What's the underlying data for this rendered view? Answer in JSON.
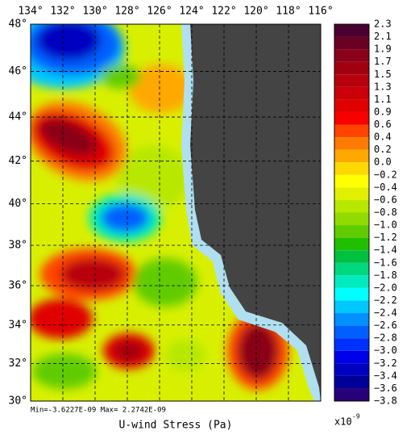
{
  "chart_data": {
    "type": "contour-map",
    "title": "U-wind Stress (Pa)",
    "stats": "Min=-3.6227E-09  Max= 2.2742E-09",
    "scale_base": "x10",
    "scale_exponent": "-9",
    "xlim": [
      134,
      116
    ],
    "xticks": [
      {
        "value": 134,
        "label": "134°"
      },
      {
        "value": 132,
        "label": "132°"
      },
      {
        "value": 130,
        "label": "130°"
      },
      {
        "value": 128,
        "label": "128°"
      },
      {
        "value": 126,
        "label": "126°"
      },
      {
        "value": 124,
        "label": "124°"
      },
      {
        "value": 122,
        "label": "122°"
      },
      {
        "value": 120,
        "label": "120°"
      },
      {
        "value": 118,
        "label": "118°"
      },
      {
        "value": 116,
        "label": "116°"
      }
    ],
    "ylim": [
      30,
      48
    ],
    "yticks": [
      {
        "value": 48,
        "label": "48°"
      },
      {
        "value": 46,
        "label": "46°"
      },
      {
        "value": 44,
        "label": "44°"
      },
      {
        "value": 42,
        "label": "42°"
      },
      {
        "value": 40,
        "label": "40°"
      },
      {
        "value": 38,
        "label": "38°"
      },
      {
        "value": 36,
        "label": "36°"
      },
      {
        "value": 34,
        "label": "34°"
      },
      {
        "value": 32,
        "label": "32°"
      },
      {
        "value": 30,
        "label": "30°"
      }
    ],
    "grid": true,
    "colorbar": {
      "levels": [
        {
          "value": 2.3,
          "label": "2.3"
        },
        {
          "value": 2.1,
          "label": "2.1"
        },
        {
          "value": 1.9,
          "label": "1.9"
        },
        {
          "value": 1.7,
          "label": "1.7"
        },
        {
          "value": 1.5,
          "label": "1.5"
        },
        {
          "value": 1.3,
          "label": "1.3"
        },
        {
          "value": 1.1,
          "label": "1.1"
        },
        {
          "value": 0.9,
          "label": "0.9"
        },
        {
          "value": 0.6,
          "label": "0.6"
        },
        {
          "value": 0.4,
          "label": "0.4"
        },
        {
          "value": 0.2,
          "label": "0.2"
        },
        {
          "value": 0,
          "label": "0.0"
        },
        {
          "value": -0.2,
          "label": "−0.2"
        },
        {
          "value": -0.4,
          "label": "−0.4"
        },
        {
          "value": -0.6,
          "label": "−0.6"
        },
        {
          "value": -0.8,
          "label": "−0.8"
        },
        {
          "value": -1,
          "label": "−1.0"
        },
        {
          "value": -1.2,
          "label": "−1.2"
        },
        {
          "value": -1.4,
          "label": "−1.4"
        },
        {
          "value": -1.6,
          "label": "−1.6"
        },
        {
          "value": -1.8,
          "label": "−1.8"
        },
        {
          "value": -2,
          "label": "−2.0"
        },
        {
          "value": -2.2,
          "label": "−2.2"
        },
        {
          "value": -2.4,
          "label": "−2.4"
        },
        {
          "value": -2.6,
          "label": "−2.6"
        },
        {
          "value": -2.8,
          "label": "−2.8"
        },
        {
          "value": -3,
          "label": "−3.0"
        },
        {
          "value": -3.2,
          "label": "−3.2"
        },
        {
          "value": -3.4,
          "label": "−3.4"
        },
        {
          "value": -3.6,
          "label": "−3.6"
        },
        {
          "value": -3.8,
          "label": "−3.8"
        }
      ],
      "colors": [
        "#4a0030",
        "#6a0024",
        "#8a0018",
        "#a00010",
        "#b8000c",
        "#cc0008",
        "#e00000",
        "#f80000",
        "#ff4400",
        "#ff7a00",
        "#ffa800",
        "#ffd800",
        "#ffff00",
        "#e0f000",
        "#b8e800",
        "#90dc00",
        "#60cc00",
        "#20c000",
        "#00c040",
        "#00d880",
        "#00ecc0",
        "#00ffff",
        "#00c8ff",
        "#0090ff",
        "#0060ff",
        "#0030ff",
        "#0000e8",
        "#0000c0",
        "#000098",
        "#280078"
      ]
    }
  }
}
